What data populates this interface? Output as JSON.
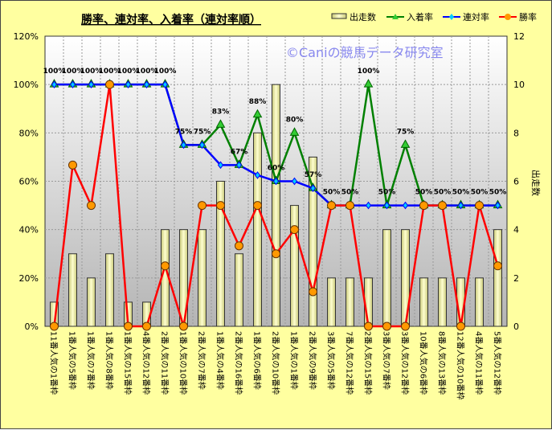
{
  "chart_data": {
    "type": "bar",
    "title": "勝率、連対率、入着率（連対率順）",
    "watermark": "©Caniの競馬データ研究室",
    "ylabel_right": "出走数",
    "ylim_left": [
      0,
      120
    ],
    "ylim_right": [
      0,
      12
    ],
    "left_ticks": [
      "0%",
      "20%",
      "40%",
      "60%",
      "80%",
      "100%",
      "120%"
    ],
    "right_ticks": [
      "0",
      "2",
      "4",
      "6",
      "8",
      "10",
      "12"
    ],
    "legend": [
      "出走数",
      "入着率",
      "連対率",
      "勝率"
    ],
    "colors": {
      "bar": "#eeeea0",
      "place": "#008000",
      "rentai": "#0000ff",
      "win": "#ff0000",
      "win_marker": "#ff9900"
    },
    "categories": [
      "11番人気の1番枠",
      "1番人気の5番枠",
      "1番人気の7番枠",
      "1番人気の8番枠",
      "1番人気の15番枠",
      "4番人気の12番枠",
      "2番人気の11番枠",
      "1番人気の10番枠",
      "2番人気の7番枠",
      "1番人気の4番枠",
      "2番人気の16番枠",
      "1番人気の6番枠",
      "2番人気の10番枠",
      "1番人気の1番枠",
      "2番人気の9番枠",
      "3番人気の5番枠",
      "7番人気の12番枠",
      "2番人気の15番枠",
      "3番人気の7番枠",
      "3番人気の12番枠",
      "10番人気の6番枠",
      "8番人気の13番枠",
      "12番人気の10番枠",
      "4番人気の11番枠",
      "5番人気の12番枠"
    ],
    "series": [
      {
        "name": "出走数",
        "axis": "right",
        "values": [
          1,
          3,
          2,
          3,
          1,
          1,
          4,
          4,
          4,
          6,
          3,
          8,
          10,
          5,
          7,
          2,
          2,
          2,
          4,
          4,
          2,
          2,
          2,
          2,
          4
        ]
      },
      {
        "name": "入着率",
        "axis": "left",
        "values": [
          100,
          100,
          100,
          100,
          100,
          100,
          100,
          75,
          75,
          83.3,
          66.7,
          87.5,
          60,
          80,
          57.1,
          50,
          50,
          100,
          50,
          75,
          50,
          50,
          50,
          50,
          50
        ]
      },
      {
        "name": "連対率",
        "axis": "left",
        "values": [
          100,
          100,
          100,
          100,
          100,
          100,
          100,
          75,
          75,
          66.7,
          66.7,
          62.5,
          60,
          60,
          57.1,
          50,
          50,
          50,
          50,
          50,
          50,
          50,
          50,
          50,
          50
        ]
      },
      {
        "name": "勝率",
        "axis": "left",
        "values": [
          0,
          66.7,
          50,
          100,
          0,
          0,
          25,
          0,
          50,
          50,
          33.3,
          50,
          30,
          40,
          14.3,
          50,
          50,
          0,
          0,
          0,
          50,
          50,
          0,
          50,
          25
        ]
      }
    ],
    "data_labels": [
      "100%",
      "100%",
      "100%",
      "100%",
      "100%",
      "100%",
      "100%",
      "75%",
      "75%",
      "83%",
      "67%",
      "88%",
      "60%",
      "80%",
      "57%",
      "50%",
      "50%",
      "100%",
      "50%",
      "75%",
      "50%",
      "50%",
      "50%",
      "50%",
      "50%"
    ]
  }
}
